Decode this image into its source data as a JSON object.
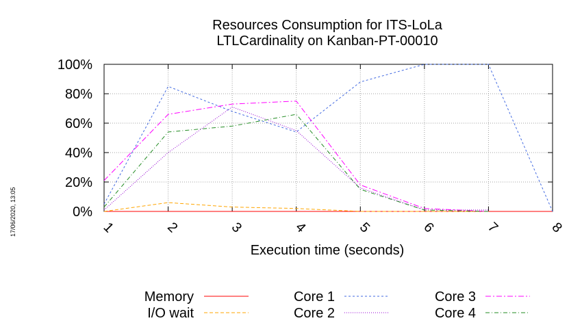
{
  "stamp": "17/06/2020, 13:05",
  "chart_data": {
    "type": "line",
    "title": [
      "Resources Consumption for ITS-LoLa",
      "LTLCardinality on Kanban-PT-00010"
    ],
    "xlabel": "Execution time (seconds)",
    "ylabel": "",
    "x": [
      1,
      2,
      3,
      4,
      5,
      6,
      7,
      8
    ],
    "xlim": [
      1,
      8
    ],
    "ylim": [
      0,
      100
    ],
    "x_ticks": [
      "1",
      "2",
      "3",
      "4",
      "5",
      "6",
      "7",
      "8"
    ],
    "y_ticks": [
      {
        "value": 0,
        "label": "0%"
      },
      {
        "value": 20,
        "label": "20%"
      },
      {
        "value": 40,
        "label": "40%"
      },
      {
        "value": 60,
        "label": "60%"
      },
      {
        "value": 80,
        "label": "80%"
      },
      {
        "value": 100,
        "label": "100%"
      }
    ],
    "grid": true,
    "legend_position": "bottom",
    "series": [
      {
        "name": "Memory",
        "color": "#ff0000",
        "dash": "none",
        "x": [
          1,
          2,
          3,
          4,
          5,
          6,
          7,
          8
        ],
        "values": [
          0,
          0,
          0,
          0,
          0,
          0,
          0,
          0
        ]
      },
      {
        "name": "I/O wait",
        "color": "#ffa500",
        "dash": "5,3",
        "x": [
          1,
          2,
          3,
          4,
          5,
          6,
          7
        ],
        "values": [
          0,
          6,
          3,
          2,
          0,
          0,
          0
        ]
      },
      {
        "name": "Core 1",
        "color": "#4169e1",
        "dash": "3,3",
        "x": [
          1,
          2,
          3,
          4,
          5,
          6,
          7,
          8
        ],
        "values": [
          5,
          85,
          68,
          54,
          88,
          100,
          100,
          0
        ]
      },
      {
        "name": "Core 2",
        "color": "#9400d3",
        "dash": "1,2",
        "x": [
          1,
          2,
          3,
          4,
          5,
          6,
          7
        ],
        "values": [
          1,
          40,
          71,
          55,
          16,
          1,
          1
        ]
      },
      {
        "name": "Core 3",
        "color": "#ff00ff",
        "dash": "8,3,2,3",
        "x": [
          1,
          2,
          3,
          4,
          5,
          6,
          7
        ],
        "values": [
          21,
          66,
          73,
          75,
          18,
          2,
          0
        ]
      },
      {
        "name": "Core 4",
        "color": "#228b22",
        "dash": "6,3,1,3",
        "x": [
          1,
          2,
          3,
          4,
          5,
          6,
          7
        ],
        "values": [
          3,
          54,
          58,
          66,
          15,
          1,
          0
        ]
      }
    ]
  }
}
